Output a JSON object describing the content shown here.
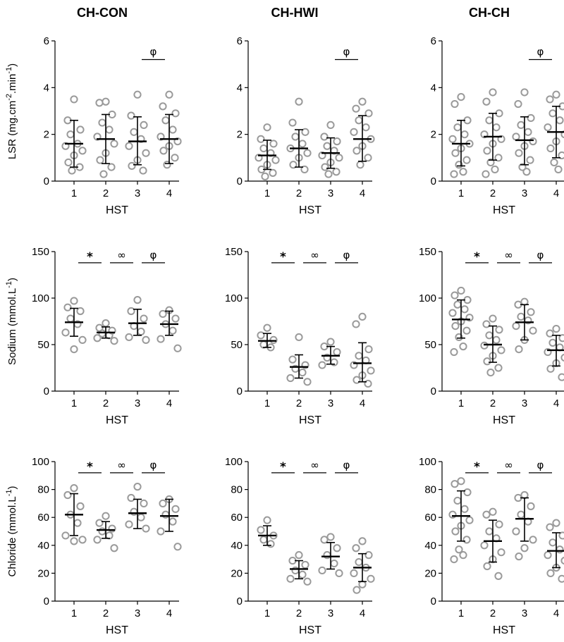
{
  "columns": [
    "CH-CON",
    "CH-HWI",
    "CH-CH"
  ],
  "rows": [
    {
      "ylabel": "LSR (mg.cm",
      "ylabel_sup1": "-2",
      "ylabel_mid": ".min",
      "ylabel_sup2": "-1",
      "ylabel_end": ")"
    },
    {
      "ylabel": "Sodium (mmol.L",
      "ylabel_sup1": "-1",
      "ylabel_mid": "",
      "ylabel_sup2": "",
      "ylabel_end": ")"
    },
    {
      "ylabel": "Chloride (mmol.L",
      "ylabel_sup1": "-1",
      "ylabel_mid": "",
      "ylabel_sup2": "",
      "ylabel_end": ")"
    }
  ],
  "chart_data": [
    {
      "type": "scatter",
      "row": 0,
      "col": 0,
      "xlabel": "HST",
      "categories": [
        "1",
        "2",
        "3",
        "4"
      ],
      "ylim": [
        0,
        6
      ],
      "yticks": [
        0,
        2,
        4,
        6
      ],
      "significance": [
        {
          "from": 3,
          "to": 4,
          "symbol": "φ",
          "y": 5.2
        }
      ],
      "groups": [
        {
          "mean": 1.6,
          "sd_low": 0.6,
          "sd_high": 2.6,
          "points": [
            3.5,
            2.6,
            2.2,
            2.0,
            1.6,
            1.5,
            1.3,
            1.1,
            0.8,
            0.6,
            0.45
          ]
        },
        {
          "mean": 1.8,
          "sd_low": 0.75,
          "sd_high": 2.85,
          "points": [
            3.4,
            3.35,
            2.85,
            2.5,
            2.2,
            1.9,
            1.6,
            1.2,
            0.9,
            0.6,
            0.3
          ]
        },
        {
          "mean": 1.7,
          "sd_low": 0.7,
          "sd_high": 2.75,
          "points": [
            3.7,
            2.8,
            2.4,
            2.1,
            1.8,
            1.5,
            1.2,
            0.9,
            0.65,
            0.45
          ]
        },
        {
          "mean": 1.8,
          "sd_low": 0.75,
          "sd_high": 2.85,
          "points": [
            3.7,
            3.2,
            2.9,
            2.6,
            2.2,
            1.9,
            1.7,
            1.5,
            1.3,
            1.0,
            0.7
          ]
        }
      ]
    },
    {
      "type": "scatter",
      "row": 0,
      "col": 1,
      "xlabel": "HST",
      "categories": [
        "1",
        "2",
        "3",
        "4"
      ],
      "ylim": [
        0,
        6
      ],
      "yticks": [
        0,
        2,
        4,
        6
      ],
      "significance": [
        {
          "from": 3,
          "to": 4,
          "symbol": "φ",
          "y": 5.2
        }
      ],
      "groups": [
        {
          "mean": 1.1,
          "sd_low": 0.5,
          "sd_high": 1.75,
          "points": [
            2.3,
            1.8,
            1.6,
            1.4,
            1.2,
            1.0,
            0.9,
            0.7,
            0.5,
            0.35,
            0.2
          ]
        },
        {
          "mean": 1.4,
          "sd_low": 0.6,
          "sd_high": 2.2,
          "points": [
            3.4,
            2.5,
            2.1,
            1.9,
            1.6,
            1.4,
            1.2,
            1.0,
            0.7,
            0.5
          ]
        },
        {
          "mean": 1.2,
          "sd_low": 0.55,
          "sd_high": 1.85,
          "points": [
            2.4,
            1.9,
            1.7,
            1.5,
            1.3,
            1.1,
            1.0,
            0.8,
            0.6,
            0.4,
            0.3
          ]
        },
        {
          "mean": 1.8,
          "sd_low": 0.85,
          "sd_high": 2.8,
          "points": [
            3.4,
            3.1,
            2.9,
            2.6,
            2.3,
            2.1,
            1.8,
            1.5,
            1.3,
            1.0,
            0.7
          ]
        }
      ]
    },
    {
      "type": "scatter",
      "row": 0,
      "col": 2,
      "xlabel": "HST",
      "categories": [
        "1",
        "2",
        "3",
        "4"
      ],
      "ylim": [
        0,
        6
      ],
      "yticks": [
        0,
        2,
        4,
        6
      ],
      "significance": [
        {
          "from": 3,
          "to": 4,
          "symbol": "φ",
          "y": 5.2
        }
      ],
      "groups": [
        {
          "mean": 1.6,
          "sd_low": 0.65,
          "sd_high": 2.6,
          "points": [
            3.6,
            3.3,
            2.6,
            2.3,
            2.0,
            1.8,
            1.6,
            1.4,
            1.2,
            0.9,
            0.7,
            0.4,
            0.3
          ]
        },
        {
          "mean": 1.9,
          "sd_low": 0.9,
          "sd_high": 2.9,
          "points": [
            3.8,
            3.4,
            2.9,
            2.6,
            2.3,
            2.0,
            1.8,
            1.6,
            1.3,
            1.0,
            0.8,
            0.5,
            0.3
          ]
        },
        {
          "mean": 1.75,
          "sd_low": 0.7,
          "sd_high": 2.75,
          "points": [
            3.8,
            3.3,
            2.7,
            2.4,
            2.1,
            1.9,
            1.7,
            1.5,
            1.2,
            0.9,
            0.6,
            0.4
          ]
        },
        {
          "mean": 2.1,
          "sd_low": 1.0,
          "sd_high": 3.2,
          "points": [
            3.7,
            3.5,
            3.2,
            2.9,
            2.6,
            2.3,
            2.0,
            1.7,
            1.4,
            1.1,
            0.8,
            0.5
          ]
        }
      ]
    },
    {
      "type": "scatter",
      "row": 1,
      "col": 0,
      "xlabel": "HST",
      "categories": [
        "1",
        "2",
        "3",
        "4"
      ],
      "ylim": [
        0,
        150
      ],
      "yticks": [
        0,
        50,
        100,
        150
      ],
      "significance": [
        {
          "from": 1,
          "to": 2,
          "symbol": "*",
          "y": 138
        },
        {
          "from": 2,
          "to": 3,
          "symbol": "∞",
          "y": 138
        },
        {
          "from": 3,
          "to": 4,
          "symbol": "φ",
          "y": 138
        }
      ],
      "groups": [
        {
          "mean": 74,
          "sd_low": 59,
          "sd_high": 89,
          "points": [
            97,
            90,
            86,
            78,
            72,
            63,
            55,
            45
          ]
        },
        {
          "mean": 63,
          "sd_low": 57,
          "sd_high": 69,
          "points": [
            73,
            68,
            65,
            62,
            60,
            57,
            54
          ]
        },
        {
          "mean": 73,
          "sd_low": 60,
          "sd_high": 88,
          "points": [
            98,
            86,
            78,
            70,
            64,
            58,
            55
          ]
        },
        {
          "mean": 72,
          "sd_low": 60,
          "sd_high": 86,
          "points": [
            87,
            83,
            78,
            72,
            65,
            56,
            46
          ]
        }
      ]
    },
    {
      "type": "scatter",
      "row": 1,
      "col": 1,
      "xlabel": "HST",
      "categories": [
        "1",
        "2",
        "3",
        "4"
      ],
      "ylim": [
        0,
        150
      ],
      "yticks": [
        0,
        50,
        100,
        150
      ],
      "significance": [
        {
          "from": 1,
          "to": 2,
          "symbol": "*",
          "y": 138
        },
        {
          "from": 2,
          "to": 3,
          "symbol": "∞",
          "y": 138
        },
        {
          "from": 3,
          "to": 4,
          "symbol": "φ",
          "y": 138
        }
      ],
      "groups": [
        {
          "mean": 54,
          "sd_low": 47,
          "sd_high": 62,
          "points": [
            68,
            60,
            55,
            50,
            47
          ]
        },
        {
          "mean": 26,
          "sd_low": 14,
          "sd_high": 39,
          "points": [
            58,
            34,
            28,
            24,
            20,
            14,
            10
          ]
        },
        {
          "mean": 38,
          "sd_low": 29,
          "sd_high": 48,
          "points": [
            53,
            48,
            42,
            36,
            31,
            28
          ]
        },
        {
          "mean": 30,
          "sd_low": 10,
          "sd_high": 52,
          "points": [
            80,
            72,
            45,
            38,
            33,
            28,
            22,
            17,
            12,
            8
          ]
        }
      ]
    },
    {
      "type": "scatter",
      "row": 1,
      "col": 2,
      "xlabel": "HST",
      "categories": [
        "1",
        "2",
        "3",
        "4"
      ],
      "ylim": [
        0,
        150
      ],
      "yticks": [
        0,
        50,
        100,
        150
      ],
      "significance": [
        {
          "from": 1,
          "to": 2,
          "symbol": "*",
          "y": 138
        },
        {
          "from": 2,
          "to": 3,
          "symbol": "∞",
          "y": 138
        },
        {
          "from": 3,
          "to": 4,
          "symbol": "φ",
          "y": 138
        }
      ],
      "groups": [
        {
          "mean": 77,
          "sd_low": 57,
          "sd_high": 98,
          "points": [
            108,
            103,
            98,
            93,
            88,
            84,
            79,
            75,
            70,
            65,
            58,
            48,
            42
          ]
        },
        {
          "mean": 50,
          "sd_low": 31,
          "sd_high": 70,
          "points": [
            78,
            72,
            66,
            60,
            55,
            49,
            44,
            38,
            32,
            25,
            20
          ]
        },
        {
          "mean": 74,
          "sd_low": 55,
          "sd_high": 93,
          "points": [
            96,
            93,
            85,
            80,
            76,
            70,
            65,
            55,
            45
          ]
        },
        {
          "mean": 44,
          "sd_low": 27,
          "sd_high": 60,
          "points": [
            67,
            62,
            57,
            52,
            47,
            42,
            36,
            30,
            24,
            15
          ]
        }
      ]
    },
    {
      "type": "scatter",
      "row": 2,
      "col": 0,
      "xlabel": "HST",
      "categories": [
        "1",
        "2",
        "3",
        "4"
      ],
      "ylim": [
        0,
        100
      ],
      "yticks": [
        0,
        20,
        40,
        60,
        80,
        100
      ],
      "significance": [
        {
          "from": 1,
          "to": 2,
          "symbol": "*",
          "y": 92
        },
        {
          "from": 2,
          "to": 3,
          "symbol": "∞",
          "y": 92
        },
        {
          "from": 3,
          "to": 4,
          "symbol": "φ",
          "y": 92
        }
      ],
      "groups": [
        {
          "mean": 62,
          "sd_low": 47,
          "sd_high": 77,
          "points": [
            81,
            76,
            68,
            62,
            56,
            47,
            44,
            43
          ]
        },
        {
          "mean": 51,
          "sd_low": 45,
          "sd_high": 57,
          "points": [
            61,
            56,
            52,
            50,
            47,
            44,
            38
          ]
        },
        {
          "mean": 63,
          "sd_low": 52,
          "sd_high": 73,
          "points": [
            82,
            74,
            70,
            64,
            60,
            55,
            52
          ]
        },
        {
          "mean": 61,
          "sd_low": 50,
          "sd_high": 73,
          "points": [
            73,
            70,
            66,
            62,
            57,
            50,
            39
          ]
        }
      ]
    },
    {
      "type": "scatter",
      "row": 2,
      "col": 1,
      "xlabel": "HST",
      "categories": [
        "1",
        "2",
        "3",
        "4"
      ],
      "ylim": [
        0,
        100
      ],
      "yticks": [
        0,
        20,
        40,
        60,
        80,
        100
      ],
      "significance": [
        {
          "from": 1,
          "to": 2,
          "symbol": "*",
          "y": 92
        },
        {
          "from": 2,
          "to": 3,
          "symbol": "∞",
          "y": 92
        },
        {
          "from": 3,
          "to": 4,
          "symbol": "φ",
          "y": 92
        }
      ],
      "groups": [
        {
          "mean": 47,
          "sd_low": 40,
          "sd_high": 54,
          "points": [
            58,
            51,
            47,
            44,
            41
          ]
        },
        {
          "mean": 23,
          "sd_low": 16,
          "sd_high": 29,
          "points": [
            33,
            29,
            26,
            22,
            19,
            16,
            14
          ]
        },
        {
          "mean": 32,
          "sd_low": 23,
          "sd_high": 42,
          "points": [
            46,
            44,
            38,
            33,
            27,
            22,
            20
          ]
        },
        {
          "mean": 24,
          "sd_low": 14,
          "sd_high": 34,
          "points": [
            43,
            38,
            33,
            28,
            24,
            20,
            16,
            12,
            8
          ]
        }
      ]
    },
    {
      "type": "scatter",
      "row": 2,
      "col": 2,
      "xlabel": "HST",
      "categories": [
        "1",
        "2",
        "3",
        "4"
      ],
      "ylim": [
        0,
        100
      ],
      "yticks": [
        0,
        20,
        40,
        60,
        80,
        100
      ],
      "significance": [
        {
          "from": 1,
          "to": 2,
          "symbol": "*",
          "y": 92
        },
        {
          "from": 2,
          "to": 3,
          "symbol": "∞",
          "y": 92
        },
        {
          "from": 3,
          "to": 4,
          "symbol": "φ",
          "y": 92
        }
      ],
      "groups": [
        {
          "mean": 61,
          "sd_low": 43,
          "sd_high": 79,
          "points": [
            86,
            84,
            78,
            72,
            66,
            62,
            58,
            54,
            50,
            44,
            37,
            33,
            30
          ]
        },
        {
          "mean": 43,
          "sd_low": 28,
          "sd_high": 58,
          "points": [
            64,
            62,
            55,
            50,
            45,
            40,
            35,
            30,
            25,
            18
          ]
        },
        {
          "mean": 59,
          "sd_low": 43,
          "sd_high": 74,
          "points": [
            76,
            74,
            68,
            62,
            57,
            50,
            44,
            38,
            32
          ]
        },
        {
          "mean": 36,
          "sd_low": 24,
          "sd_high": 49,
          "points": [
            56,
            53,
            47,
            42,
            37,
            33,
            29,
            24,
            20,
            16
          ]
        }
      ]
    }
  ]
}
